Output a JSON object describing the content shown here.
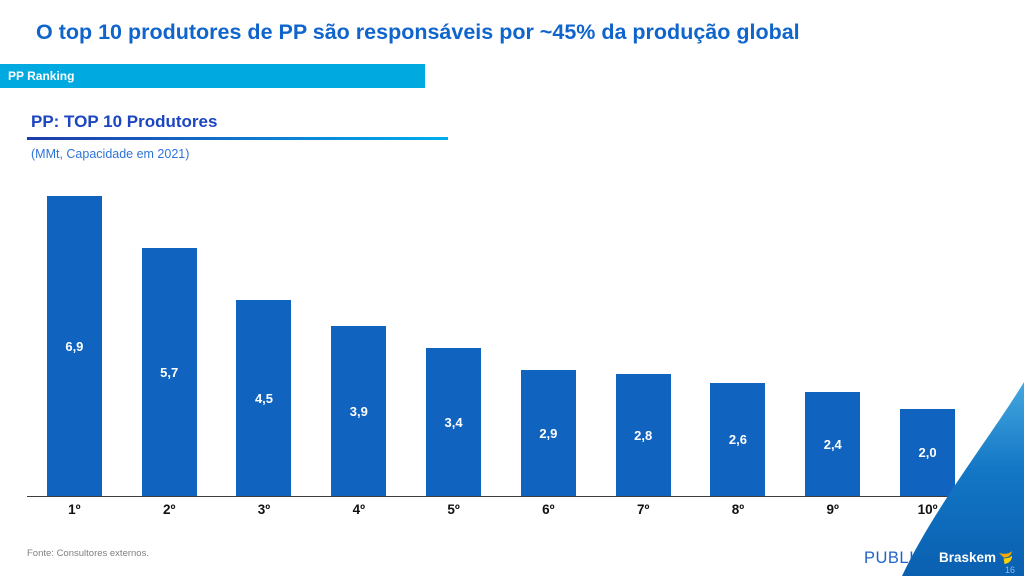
{
  "slide": {
    "title": "O top 10 produtores de PP são responsáveis por ~45% da produção global",
    "tag_label": "PP Ranking",
    "footer": {
      "source": "Fonte: Consultores externos.",
      "classification": "PUBLIC",
      "brand": "Braskem",
      "page_number": "16"
    }
  },
  "chart_data": {
    "type": "bar",
    "title": "PP: TOP 10 Produtores",
    "subtitle": "(MMt, Capacidade em 2021)",
    "unit": "MMt",
    "categories": [
      "1º",
      "2º",
      "3º",
      "4º",
      "5º",
      "6º",
      "7º",
      "8º",
      "9º",
      "10º"
    ],
    "values": [
      6.9,
      5.7,
      4.5,
      3.9,
      3.4,
      2.9,
      2.8,
      2.6,
      2.4,
      2.0
    ],
    "value_labels": [
      "6,9",
      "5,7",
      "4,5",
      "3,9",
      "3,4",
      "2,9",
      "2,8",
      "2,6",
      "2,4",
      "2,0"
    ],
    "ylim": [
      0,
      6.9
    ],
    "grid": false,
    "legend": false,
    "value_label_position": "inside-center",
    "bar_color": "#1063be"
  },
  "colors": {
    "title_blue": "#1065cc",
    "banner_cyan": "#00a9e0",
    "chart_title_blue": "#1c45c0",
    "subtitle_blue": "#2e74d8",
    "bar_blue": "#1063be",
    "rule_dark": "#1f3ba8",
    "rule_light": "#00aeef",
    "public_blue": "#2064c8",
    "swoosh_light": "#45a7de",
    "swoosh_mid": "#1377c6",
    "swoosh_dark": "#0a5fb0",
    "brand_orange": "#f5a800",
    "brand_yellow": "#ffd100"
  }
}
